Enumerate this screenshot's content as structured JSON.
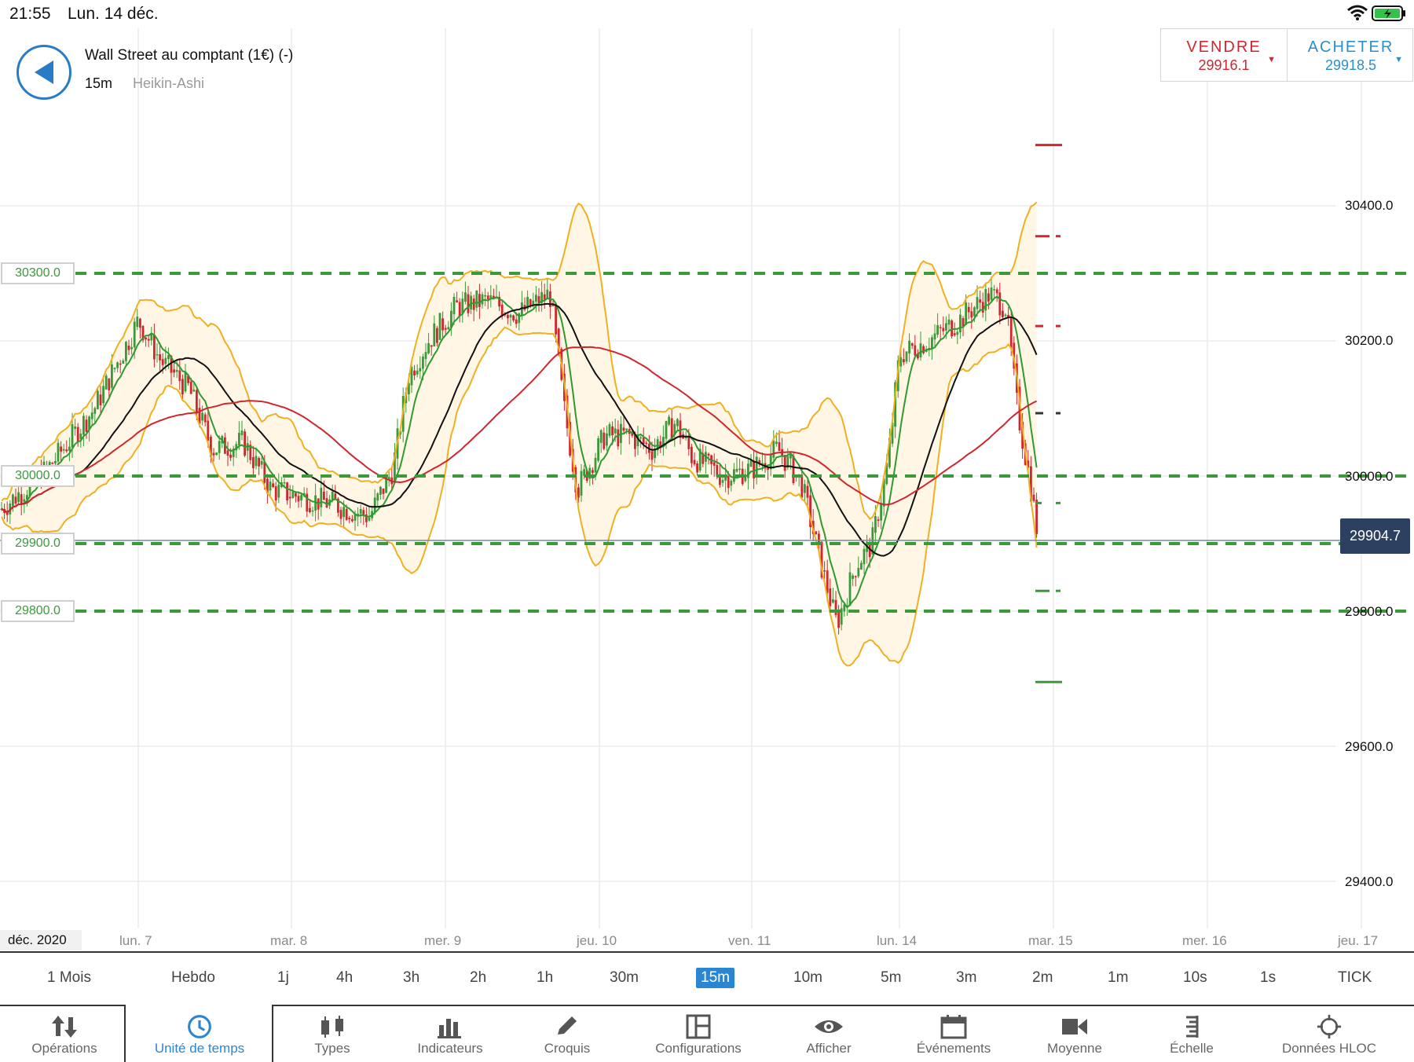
{
  "status_bar": {
    "time": "21:55",
    "date": "Lun. 14 déc."
  },
  "header": {
    "instrument": "Wall Street au comptant (1€) (-)",
    "timeframe": "15m",
    "chart_type": "Heikin-Ashi"
  },
  "trade": {
    "sell_label": "VENDRE",
    "sell_price": "29916.1",
    "buy_label": "ACHETER",
    "buy_price": "29918.5"
  },
  "chart_data": {
    "type": "candlestick",
    "style": "Heikin-Ashi",
    "interval": "15m",
    "y_ticks": [
      "30400.0",
      "30200.0",
      "30000.0",
      "29800.0",
      "29600.0",
      "29400.0"
    ],
    "ylim": [
      29335,
      30530
    ],
    "x_ticks": [
      "déc. 2020",
      "lun. 7",
      "mar. 8",
      "mer. 9",
      "jeu. 10",
      "ven. 11",
      "lun. 14",
      "mar. 15",
      "mer. 16",
      "jeu. 17"
    ],
    "horizontal_levels": [
      "30300.0",
      "30000.0",
      "29900.0",
      "29800.0"
    ],
    "current_price": "29904.7",
    "price_path": [
      {
        "t": "déc. 2020",
        "v": 29970
      },
      {
        "t": "lun. 7",
        "v": 30180
      },
      {
        "t": "mar. 8",
        "v": 29980
      },
      {
        "t": "mer. 9",
        "v": 30200
      },
      {
        "t": "jeu. 10",
        "v": 30050
      },
      {
        "t": "ven. 11",
        "v": 29980
      },
      {
        "t": "lun. 14",
        "v": 30180
      },
      {
        "t": "mar. 15",
        "v": 29904.7
      }
    ],
    "colors": {
      "up": "#3a9a3a",
      "down": "#d0262e",
      "bollinger": "#f0b020",
      "ma_fast": "#2f9a2f",
      "ma_mid": "#111111",
      "ma_slow": "#d0262e"
    }
  },
  "timeframes": [
    "1 Mois",
    "Hebdo",
    "1j",
    "4h",
    "3h",
    "2h",
    "1h",
    "30m",
    "15m",
    "10m",
    "5m",
    "3m",
    "2m",
    "1m",
    "10s",
    "1s",
    "TICK"
  ],
  "timeframe_selected": "15m",
  "tabs": [
    {
      "label": "Opérations",
      "icon": "arrows-updown-icon"
    },
    {
      "label": "Unité de temps",
      "icon": "clock-icon"
    },
    {
      "label": "Types",
      "icon": "candles-icon"
    },
    {
      "label": "Indicateurs",
      "icon": "bars-icon"
    },
    {
      "label": "Croquis",
      "icon": "pencil-icon"
    },
    {
      "label": "Configurations",
      "icon": "layout-icon"
    },
    {
      "label": "Afficher",
      "icon": "eye-icon"
    },
    {
      "label": "Événements",
      "icon": "calendar-icon"
    },
    {
      "label": "Moyenne",
      "icon": "camera-icon"
    },
    {
      "label": "Échelle",
      "icon": "scale-icon"
    },
    {
      "label": "Données HLOC",
      "icon": "crosshair-icon"
    }
  ]
}
